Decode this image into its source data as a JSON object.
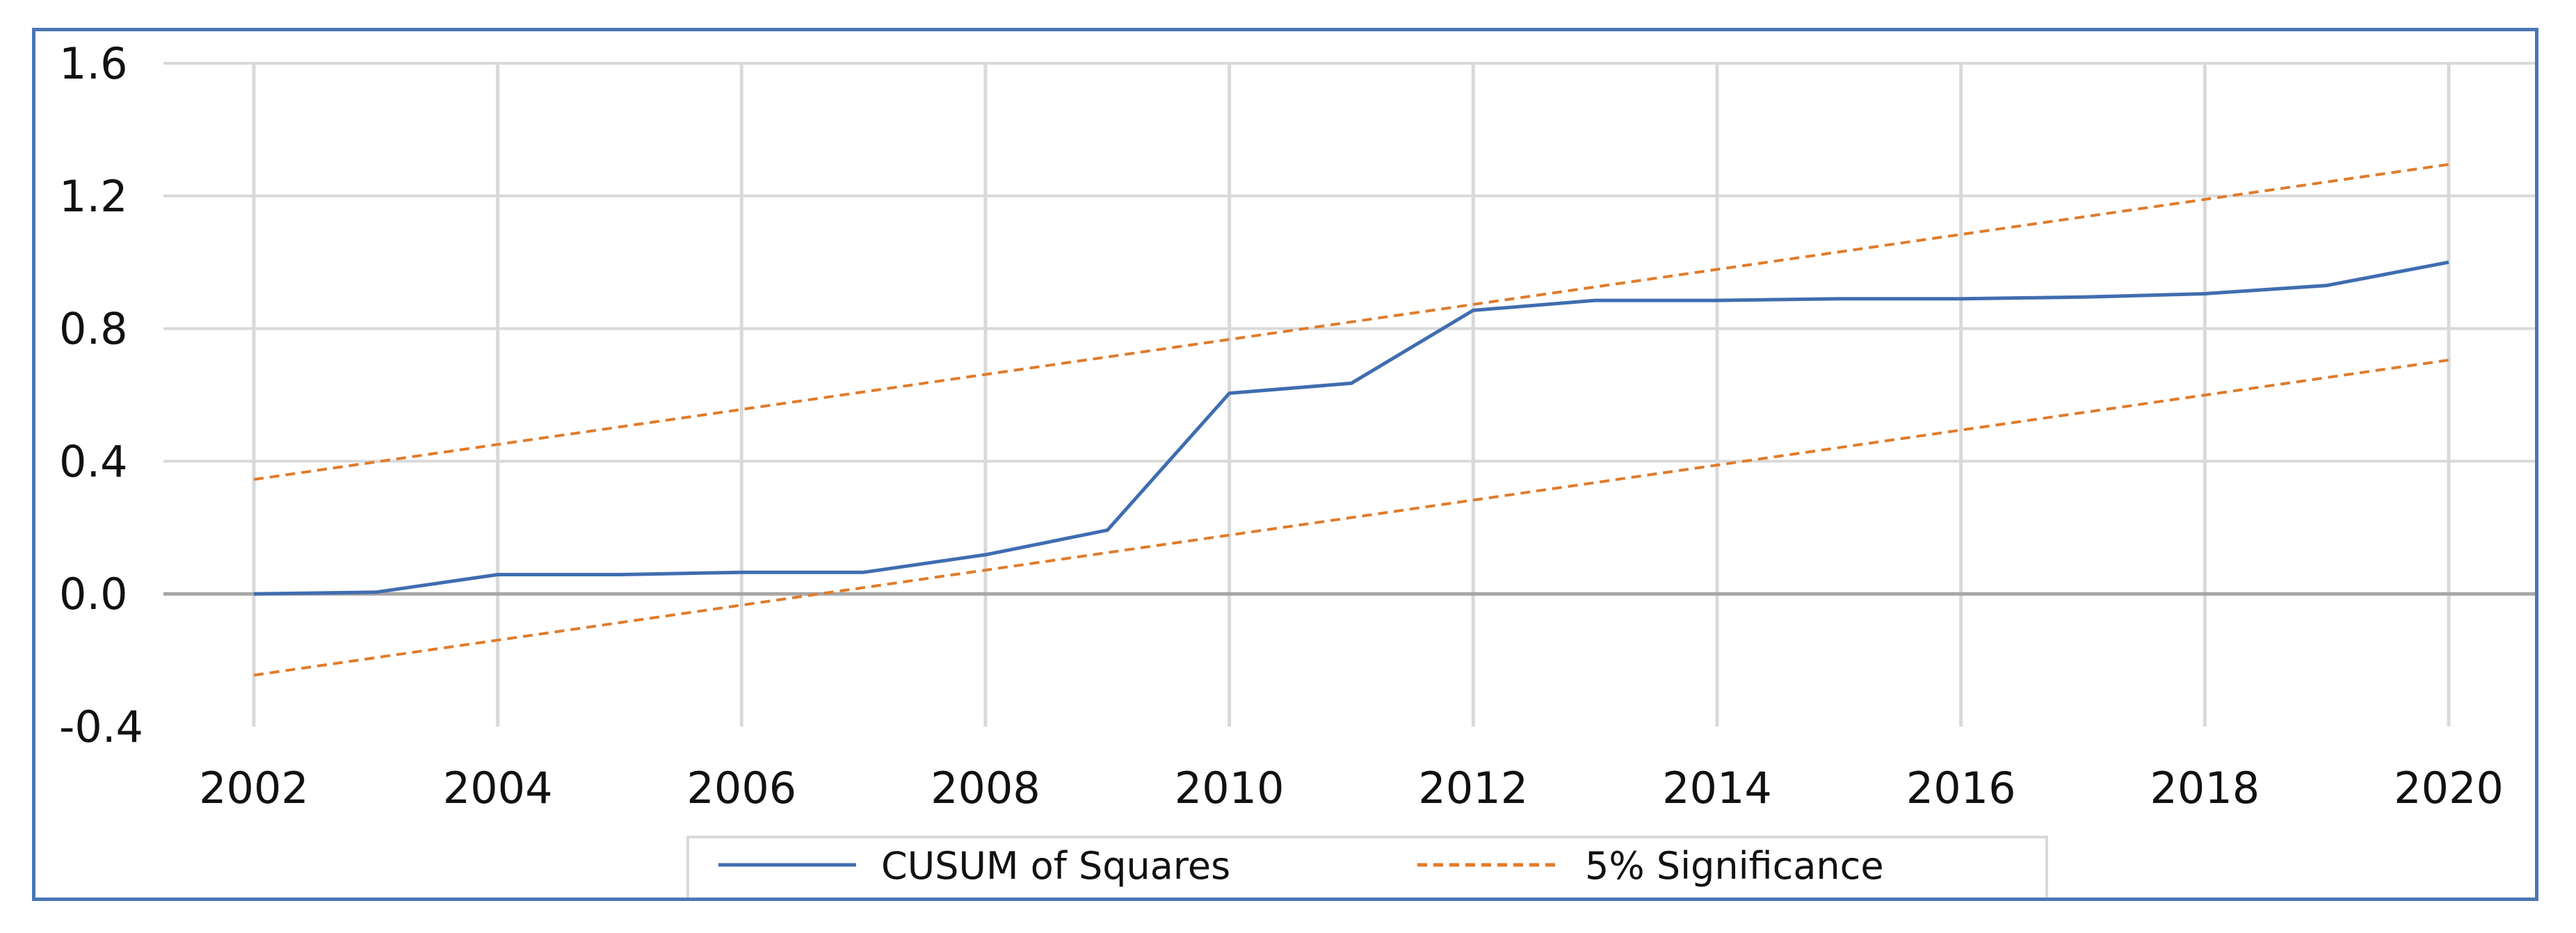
{
  "chart_data": {
    "type": "line",
    "title": "",
    "xlabel": "",
    "ylabel": "",
    "xlim": [
      2002,
      2020
    ],
    "ylim": [
      -0.4,
      1.6
    ],
    "x_ticks": [
      "2002",
      "2004",
      "2006",
      "2008",
      "2010",
      "2012",
      "2014",
      "2016",
      "2018",
      "2020"
    ],
    "y_ticks": [
      "1.6",
      "1.2",
      "0.8",
      "0.4",
      "0.0",
      "-0.4"
    ],
    "grid": true,
    "legend": "bottom",
    "series": [
      {
        "name": "CUSUM of Squares",
        "color": "#3f6db0",
        "style": "solid",
        "x": [
          2002.0,
          2003.0,
          2004.0,
          2005.0,
          2006.0,
          2007.0,
          2008.0,
          2009.0,
          2010.0,
          2011.0,
          2012.0,
          2013.0,
          2014.0,
          2015.0,
          2016.0,
          2017.0,
          2018.0,
          2019.0,
          2020.0
        ],
        "y": [
          0.0,
          0.005,
          0.058,
          0.058,
          0.065,
          0.065,
          0.118,
          0.192,
          0.605,
          0.635,
          0.855,
          0.885,
          0.885,
          0.89,
          0.89,
          0.895,
          0.905,
          0.93,
          1.0
        ]
      },
      {
        "name": "5% Significance",
        "color": "#e07b2a",
        "style": "dashed",
        "x": [
          2002.0,
          2020.0
        ],
        "y": [
          0.345,
          1.295
        ]
      },
      {
        "name": "5% Significance",
        "color": "#e07b2a",
        "style": "dashed",
        "show_in_legend": false,
        "x": [
          2002.0,
          2020.0
        ],
        "y": [
          -0.245,
          0.705
        ]
      }
    ]
  }
}
